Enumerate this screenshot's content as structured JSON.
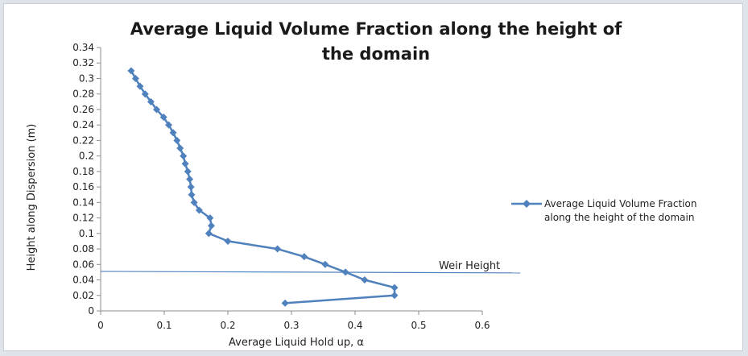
{
  "chart_data": {
    "type": "scatter",
    "title_lines": [
      "Average Liquid Volume Fraction along the height of",
      "the domain"
    ],
    "xlabel": "Average Liquid Hold up, α",
    "ylabel": "Height along Dispersion (m)",
    "xlim": [
      0,
      0.6
    ],
    "ylim": [
      0,
      0.34
    ],
    "x_ticks": [
      "0",
      "0.1",
      "0.2",
      "0.3",
      "0.4",
      "0.5",
      "0.6"
    ],
    "y_ticks": [
      "0",
      "0.02",
      "0.04",
      "0.06",
      "0.08",
      "0.1",
      "0.12",
      "0.14",
      "0.16",
      "0.18",
      "0.2",
      "0.22",
      "0.24",
      "0.26",
      "0.28",
      "0.3",
      "0.32",
      "0.34"
    ],
    "grid": false,
    "legend_position": "right",
    "series": [
      {
        "name_lines": [
          "Average Liquid Volume Fraction",
          "along the height of the domain"
        ],
        "color": "#4f81bd",
        "marker": "diamond",
        "x": [
          0.29,
          0.462,
          0.462,
          0.415,
          0.385,
          0.353,
          0.32,
          0.278,
          0.2,
          0.17,
          0.174,
          0.172,
          0.155,
          0.147,
          0.143,
          0.142,
          0.14,
          0.137,
          0.133,
          0.13,
          0.125,
          0.12,
          0.114,
          0.107,
          0.099,
          0.088,
          0.079,
          0.07,
          0.062,
          0.055,
          0.048
        ],
        "y": [
          0.01,
          0.02,
          0.03,
          0.04,
          0.05,
          0.06,
          0.07,
          0.08,
          0.09,
          0.1,
          0.11,
          0.12,
          0.13,
          0.14,
          0.15,
          0.16,
          0.17,
          0.18,
          0.19,
          0.2,
          0.21,
          0.22,
          0.23,
          0.24,
          0.25,
          0.26,
          0.27,
          0.28,
          0.29,
          0.3,
          0.31
        ]
      }
    ],
    "annotations": [
      {
        "label": "Weir Height",
        "y_start": 0.051,
        "y_end": 0.049,
        "color": "#4f81bd"
      }
    ]
  }
}
